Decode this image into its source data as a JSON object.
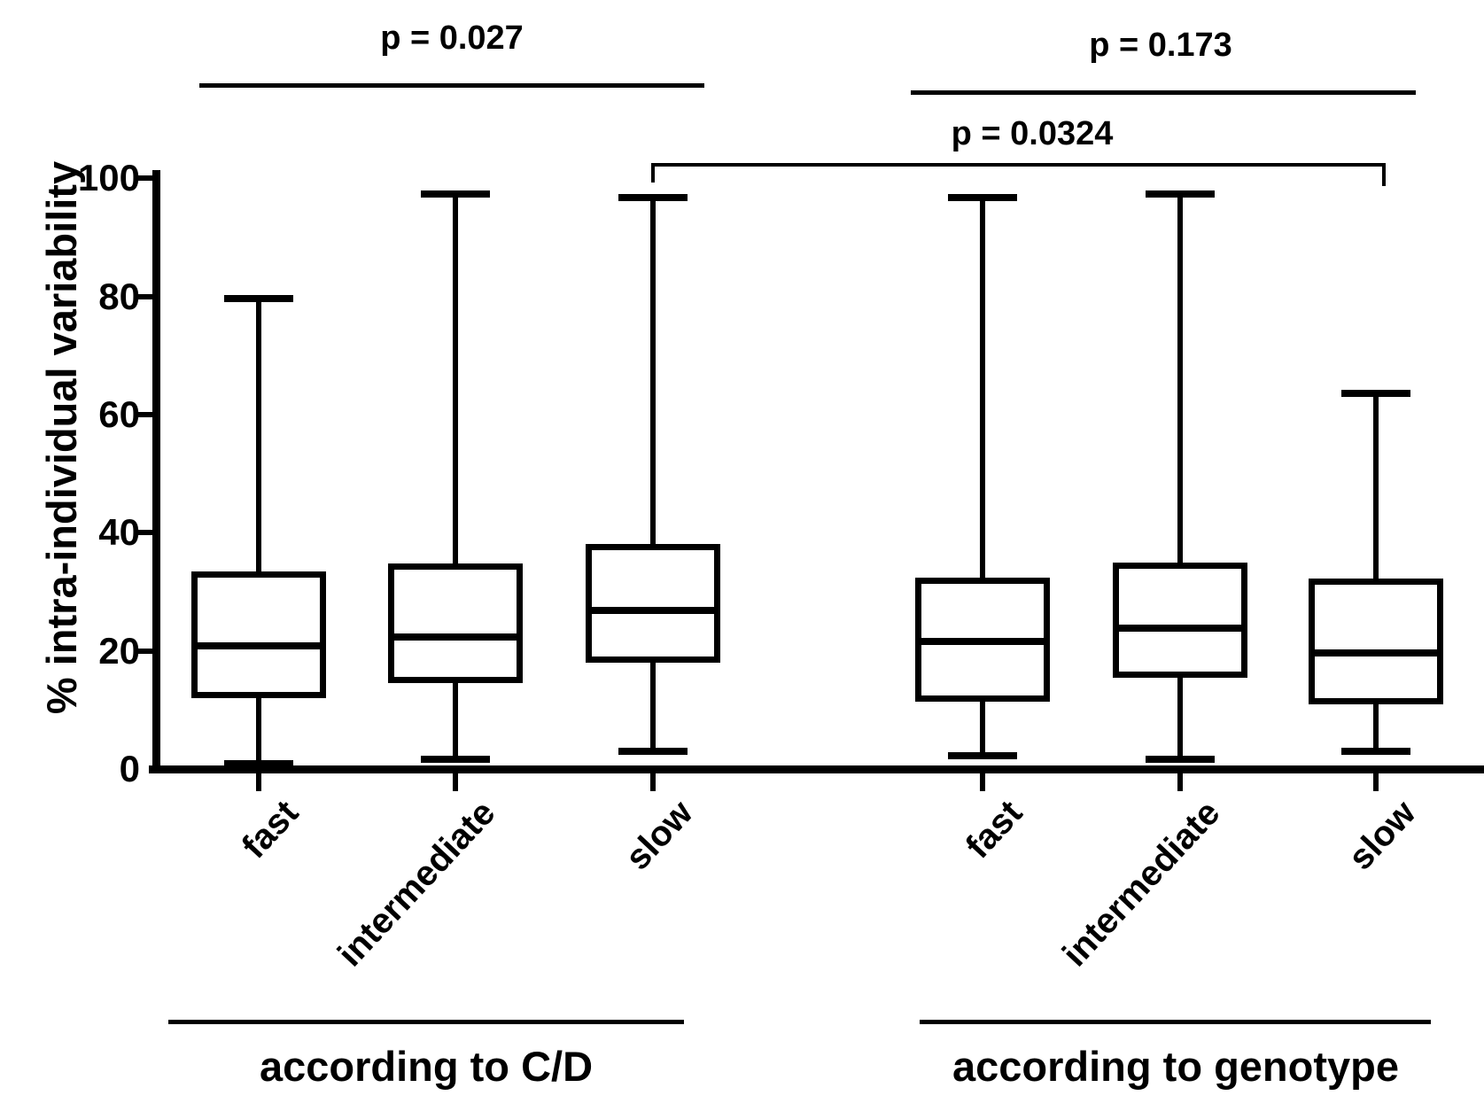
{
  "figure": {
    "y_axis_title": "% intra-individual variability",
    "comparisons": [
      {
        "label": "p = 0.027"
      },
      {
        "label": "p = 0.173"
      },
      {
        "label": "p = 0.0324"
      }
    ],
    "groups": [
      {
        "label": "according to C/D"
      },
      {
        "label": "according to genotype"
      }
    ],
    "ink_color": "#000000",
    "background_color": "#ffffff"
  },
  "chart_data": {
    "type": "box",
    "title": "",
    "xlabel": "",
    "ylabel": "% intra-individual variability",
    "ylim": [
      0,
      100
    ],
    "y_ticks": [
      0,
      20,
      40,
      60,
      80,
      100
    ],
    "grid": false,
    "legend": "none",
    "group_labels": [
      "according to C/D",
      "according to genotype"
    ],
    "categories": [
      "fast",
      "intermediate",
      "slow",
      "fast",
      "intermediate",
      "slow"
    ],
    "boxes": [
      {
        "group": "according to C/D",
        "category": "fast",
        "whisker_low": 0.8,
        "q1": 12.0,
        "median": 20.8,
        "q3": 33.4,
        "whisker_high": 79.7
      },
      {
        "group": "according to C/D",
        "category": "intermediate",
        "whisker_low": 1.6,
        "q1": 14.5,
        "median": 22.3,
        "q3": 34.8,
        "whisker_high": 97.4
      },
      {
        "group": "according to C/D",
        "category": "slow",
        "whisker_low": 3.0,
        "q1": 18.0,
        "median": 26.9,
        "q3": 38.1,
        "whisker_high": 96.8
      },
      {
        "group": "according to genotype",
        "category": "fast",
        "whisker_low": 2.2,
        "q1": 11.4,
        "median": 21.6,
        "q3": 32.4,
        "whisker_high": 96.8
      },
      {
        "group": "according to genotype",
        "category": "intermediate",
        "whisker_low": 1.7,
        "q1": 15.5,
        "median": 23.8,
        "q3": 35.0,
        "whisker_high": 97.4
      },
      {
        "group": "according to genotype",
        "category": "slow",
        "whisker_low": 3.0,
        "q1": 10.9,
        "median": 19.6,
        "q3": 32.2,
        "whisker_high": 63.6
      }
    ],
    "comparisons": [
      {
        "label": "p = 0.027",
        "p": 0.027,
        "between": [
          "fast (according to C/D)",
          "slow (according to C/D)"
        ]
      },
      {
        "label": "p = 0.173",
        "p": 0.173,
        "between": [
          "fast (according to genotype)",
          "slow (according to genotype)"
        ]
      },
      {
        "label": "p = 0.0324",
        "p": 0.0324,
        "between": [
          "slow (according to C/D)",
          "slow (according to genotype)"
        ]
      }
    ]
  }
}
